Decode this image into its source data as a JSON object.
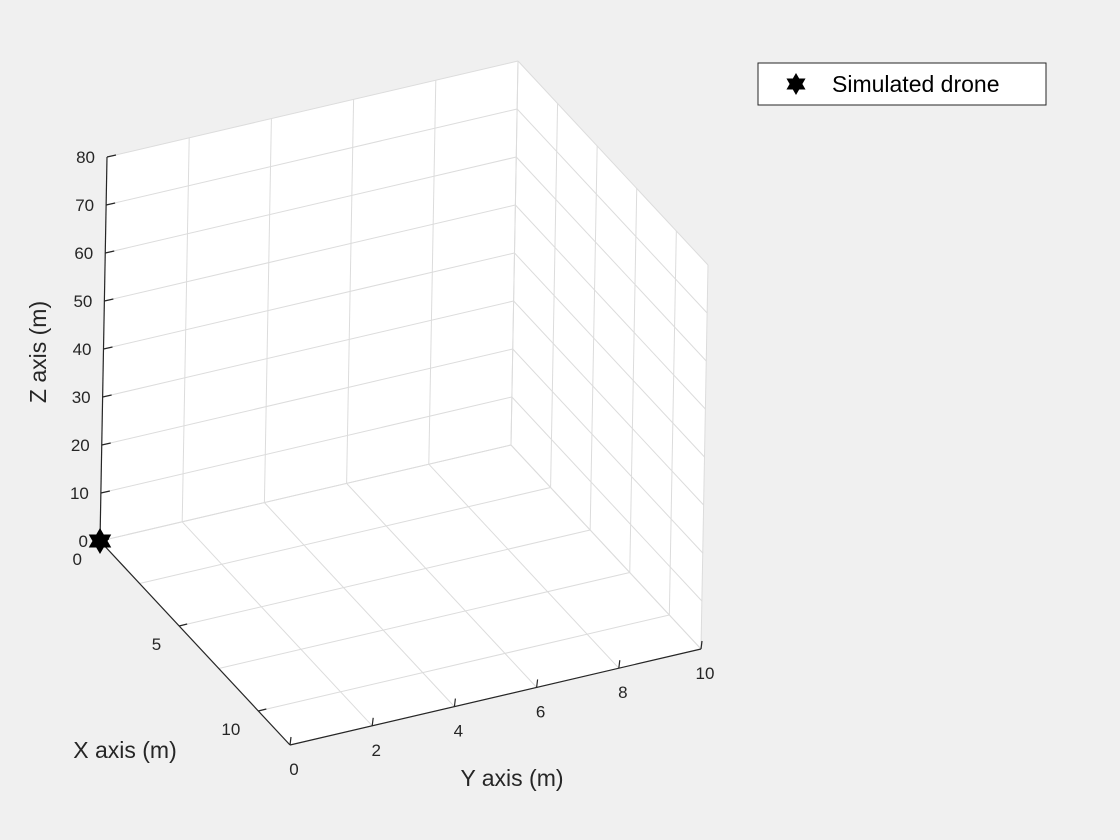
{
  "chart_data": {
    "type": "scatter",
    "dimensions": 3,
    "title": "",
    "xlabel": "X axis (m)",
    "ylabel": "Y axis (m)",
    "zlabel": "Z axis (m)",
    "xlim": [
      0,
      12
    ],
    "ylim": [
      0,
      10
    ],
    "zlim": [
      0,
      80
    ],
    "xticks": [
      0,
      5,
      10
    ],
    "yticks": [
      0,
      2,
      4,
      6,
      8,
      10
    ],
    "zticks": [
      0,
      10,
      20,
      30,
      40,
      50,
      60,
      70,
      80
    ],
    "grid": true,
    "legend_position": "top-right",
    "series": [
      {
        "name": "Simulated drone",
        "marker": "hexagram",
        "color": "#000000",
        "points": [
          {
            "x": 0,
            "y": 0,
            "z": 0
          }
        ]
      }
    ]
  }
}
